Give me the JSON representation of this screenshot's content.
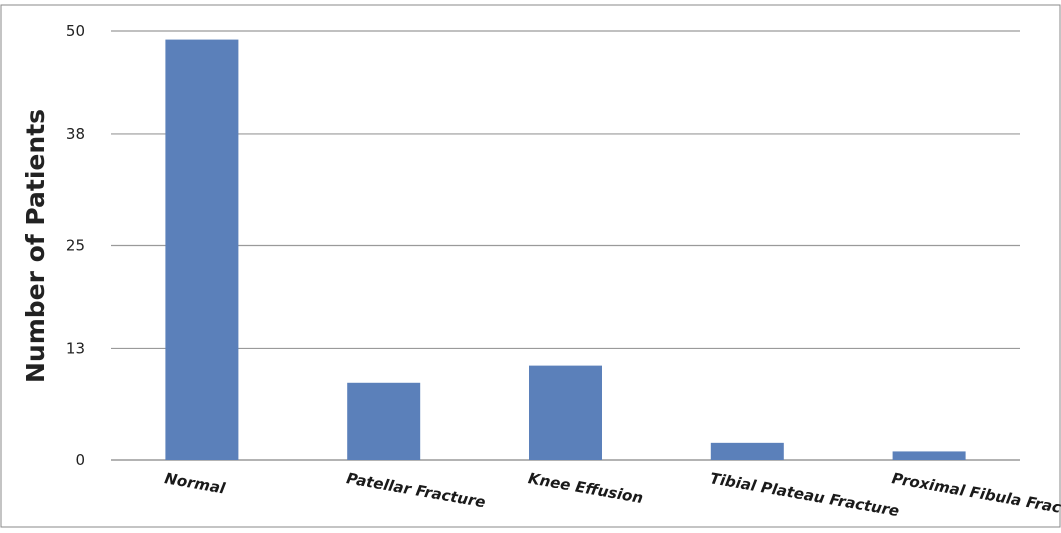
{
  "chart_data": {
    "type": "bar",
    "title": "",
    "xlabel": "",
    "ylabel": "Number of Patients",
    "categories": [
      "Normal",
      "Patellar Fracture",
      "Knee Effusion",
      "Tibial Plateau Fracture",
      "Proximal Fibula Fracture"
    ],
    "values": [
      49,
      9,
      11,
      2,
      1
    ],
    "yticks": [
      "0",
      "13",
      "25",
      "38",
      "50"
    ],
    "ylim": [
      0,
      50
    ],
    "grid": true,
    "legend": "none",
    "bar_color": "#5b80ba",
    "grid_color": "#9a9a9a"
  }
}
